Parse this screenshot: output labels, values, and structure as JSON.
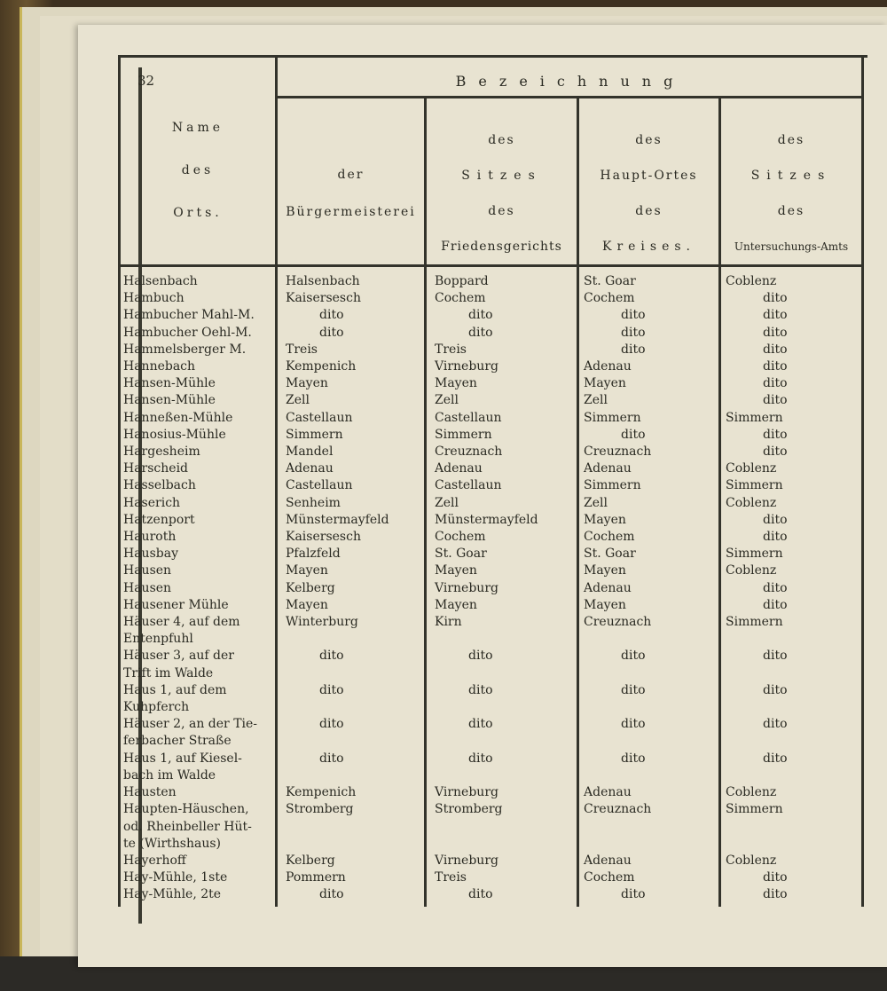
{
  "page_number": "32",
  "header": {
    "group_title": "Bezeichnung",
    "col_name": [
      "Name",
      "des",
      "Orts."
    ],
    "col_buergermeisterei": [
      "der",
      "Bürgermeisterei"
    ],
    "col_friedensgericht": [
      "des",
      "Sitzes",
      "des",
      "Friedensgerichts"
    ],
    "col_kreis": [
      "des",
      "Haupt-Ortes",
      "des",
      "Kreises."
    ],
    "col_untersuchungsamt": [
      "des",
      "Sitzes",
      "des",
      "Untersuchungs-Amts"
    ]
  },
  "rows": [
    [
      "Halsenbach",
      "Halsenbach",
      "Boppard",
      "St. Goar",
      "Coblenz"
    ],
    [
      "Hambuch",
      "Kaisersesch",
      "Cochem",
      "Cochem",
      "dito"
    ],
    [
      "Hambucher Mahl-M.",
      "dito",
      "dito",
      "dito",
      "dito"
    ],
    [
      "Hambucher Oehl-M.",
      "dito",
      "dito",
      "dito",
      "dito"
    ],
    [
      "Hammelsberger M.",
      "Treis",
      "Treis",
      "dito",
      "dito"
    ],
    [
      "Hannebach",
      "Kempenich",
      "Virneburg",
      "Adenau",
      "dito"
    ],
    [
      "Hansen-Mühle",
      "Mayen",
      "Mayen",
      "Mayen",
      "dito"
    ],
    [
      "Hansen-Mühle",
      "Zell",
      "Zell",
      "Zell",
      "dito"
    ],
    [
      "Hanneßen-Mühle",
      "Castellaun",
      "Castellaun",
      "Simmern",
      "Simmern"
    ],
    [
      "Hanosius-Mühle",
      "Simmern",
      "Simmern",
      "dito",
      "dito"
    ],
    [
      "Hargesheim",
      "Mandel",
      "Creuznach",
      "Creuznach",
      "dito"
    ],
    [
      "Harscheid",
      "Adenau",
      "Adenau",
      "Adenau",
      "Coblenz"
    ],
    [
      "Hasselbach",
      "Castellaun",
      "Castellaun",
      "Simmern",
      "Simmern"
    ],
    [
      "Haserich",
      "Senheim",
      "Zell",
      "Zell",
      "Coblenz"
    ],
    [
      "Hatzenport",
      "Münstermayfeld",
      "Münstermayfeld",
      "Mayen",
      "dito"
    ],
    [
      "Hauroth",
      "Kaisersesch",
      "Cochem",
      "Cochem",
      "dito"
    ],
    [
      "Hausbay",
      "Pfalzfeld",
      "St. Goar",
      "St. Goar",
      "Simmern"
    ],
    [
      "Hausen",
      "Mayen",
      "Mayen",
      "Mayen",
      "Coblenz"
    ],
    [
      "Hausen",
      "Kelberg",
      "Virneburg",
      "Adenau",
      "dito"
    ],
    [
      "Hausener Mühle",
      "Mayen",
      "Mayen",
      "Mayen",
      "dito"
    ],
    [
      "Häuser 4, auf dem\nEntenpfuhl",
      "Winterburg",
      "Kirn",
      "Creuznach",
      "Simmern"
    ],
    [
      "Häuser 3, auf der\nTrift im Walde",
      "dito",
      "dito",
      "dito",
      "dito"
    ],
    [
      "Haus 1, auf dem\nKuhpferch",
      "dito",
      "dito",
      "dito",
      "dito"
    ],
    [
      "Häuser 2, an der Tie-\nferbacher Straße",
      "dito",
      "dito",
      "dito",
      "dito"
    ],
    [
      "Haus 1, auf Kiesel-\nbach im Walde",
      "dito",
      "dito",
      "dito",
      "dito"
    ],
    [
      "Hausten",
      "Kempenich",
      "Virneburg",
      "Adenau",
      "Coblenz"
    ],
    [
      "Haupten-Häuschen,\nod. Rheinbeller Hüt-\nte (Wirthshaus)",
      "Stromberg",
      "Stromberg",
      "Creuznach",
      "Simmern"
    ],
    [
      "Hayerhoff",
      "Kelberg",
      "Virneburg",
      "Adenau",
      "Coblenz"
    ],
    [
      "Hay-Mühle, 1ste",
      "Pommern",
      "Treis",
      "Cochem",
      "dito"
    ],
    [
      "Hay-Mühle, 2te",
      "dito",
      "dito",
      "dito",
      "dito"
    ]
  ]
}
